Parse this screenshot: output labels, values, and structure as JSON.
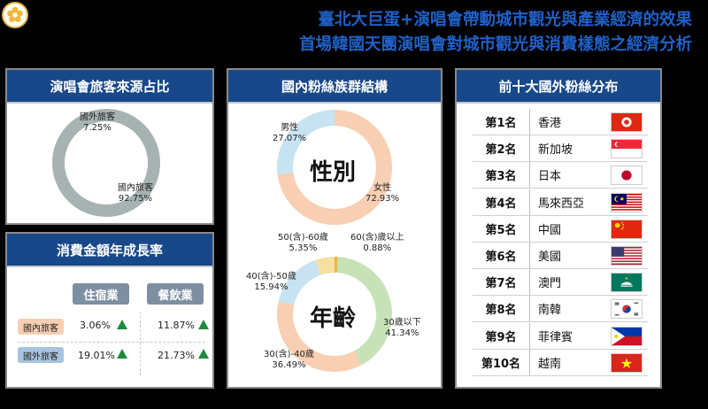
{
  "header": {
    "line1": "臺北大巨蛋+演唱會帶動城市觀光與產業經濟的效果",
    "line2": "首場韓國天團演唱會對城市觀光與消費樣態之經濟分析"
  },
  "colors": {
    "title_blue": "#1f61c8",
    "panel_head": "#17488a",
    "domestic": "#f8cfb2",
    "foreign": "#a9c3df",
    "up_arrow": "#1f8a3a",
    "ring_gray": "#a7b3b3"
  },
  "source_panel": {
    "title": "演唱會旅客來源占比",
    "foreign_label": "國外旅客",
    "foreign_pct": "7.25%",
    "domestic_label": "國內旅客",
    "domestic_pct": "92.75%"
  },
  "growth_panel": {
    "title": "消費金額年成長率",
    "col1": "住宿業",
    "col2": "餐飲業",
    "row1_label": "國內旅客",
    "row2_label": "國外旅客",
    "r1c1": "3.06%",
    "r1c2": "11.87%",
    "r2c1": "19.01%",
    "r2c2": "21.73%"
  },
  "fans_panel": {
    "title": "國內粉絲族群結構",
    "gender_center": "性別",
    "male_label": "男性",
    "male_pct": "27.07%",
    "female_label": "女性",
    "female_pct": "72.93%",
    "age_center": "年齡",
    "age_lt30_label": "30歲以下",
    "age_lt30_pct": "41.34%",
    "age_30_40_label": "30(含)-40歲",
    "age_30_40_pct": "36.49%",
    "age_40_50_label": "40(含)-50歲",
    "age_40_50_pct": "15.94%",
    "age_50_60_label": "50(含)-60歲",
    "age_50_60_pct": "5.35%",
    "age_60p_label": "60(含)歲以上",
    "age_60p_pct": "0.88%"
  },
  "ranking_panel": {
    "title": "前十大國外粉絲分布",
    "rows": [
      {
        "rank": "第1名",
        "country": "香港",
        "flag": "hong-kong-flag"
      },
      {
        "rank": "第2名",
        "country": "新加坡",
        "flag": "singapore-flag"
      },
      {
        "rank": "第3名",
        "country": "日本",
        "flag": "japan-flag"
      },
      {
        "rank": "第4名",
        "country": "馬來西亞",
        "flag": "malaysia-flag"
      },
      {
        "rank": "第5名",
        "country": "中國",
        "flag": "china-flag"
      },
      {
        "rank": "第6名",
        "country": "美國",
        "flag": "usa-flag"
      },
      {
        "rank": "第7名",
        "country": "澳門",
        "flag": "macau-flag"
      },
      {
        "rank": "第8名",
        "country": "南韓",
        "flag": "south-korea-flag"
      },
      {
        "rank": "第9名",
        "country": "菲律賓",
        "flag": "philippines-flag"
      },
      {
        "rank": "第10名",
        "country": "越南",
        "flag": "vietnam-flag"
      }
    ]
  },
  "chart_data": [
    {
      "type": "pie",
      "title": "演唱會旅客來源占比",
      "categories": [
        "國外旅客",
        "國內旅客"
      ],
      "values": [
        7.25,
        92.75
      ]
    },
    {
      "type": "pie",
      "title": "國內粉絲族群結構",
      "subtitle": "性別",
      "categories": [
        "男性",
        "女性"
      ],
      "values": [
        27.07,
        72.93
      ]
    },
    {
      "type": "pie",
      "title": "國內粉絲族群結構",
      "subtitle": "年齡",
      "categories": [
        "30歲以下",
        "30(含)-40歲",
        "40(含)-50歲",
        "50(含)-60歲",
        "60(含)歲以上"
      ],
      "values": [
        41.34,
        36.49,
        15.94,
        5.35,
        0.88
      ]
    },
    {
      "type": "table",
      "title": "消費金額年成長率",
      "columns": [
        "住宿業",
        "餐飲業"
      ],
      "rows": [
        "國內旅客",
        "國外旅客"
      ],
      "values": [
        [
          3.06,
          11.87
        ],
        [
          19.01,
          21.73
        ]
      ]
    }
  ]
}
